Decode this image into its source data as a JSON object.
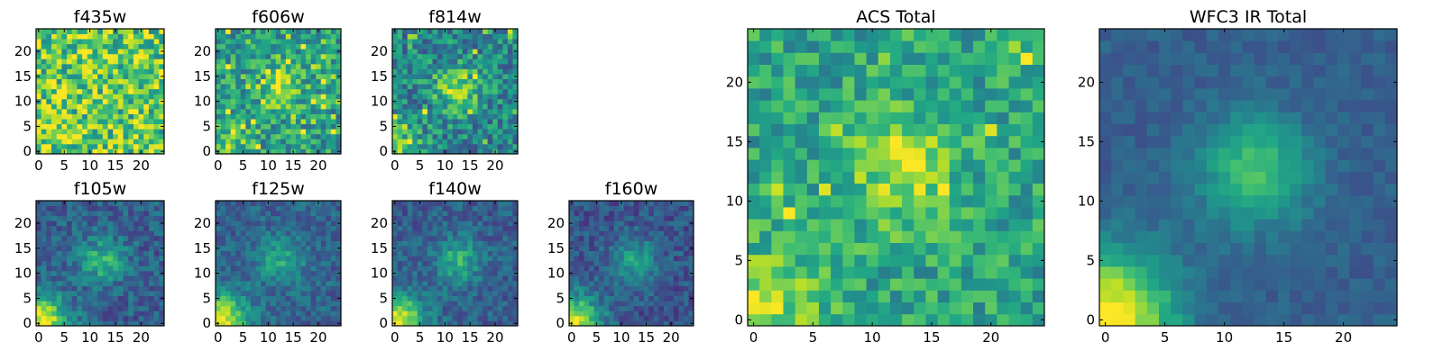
{
  "chart_data": {
    "type": "heatmap",
    "colormap": "viridis",
    "grid_size": 25,
    "xlim": [
      0,
      25
    ],
    "ylim": [
      0,
      25
    ],
    "panels": [
      {
        "id": "f435w",
        "title": "f435w",
        "xticks": [
          0,
          5,
          10,
          15,
          20
        ],
        "yticks": [
          0,
          5,
          10,
          15,
          20
        ],
        "pattern": {
          "seed": 11,
          "base": 0.72,
          "noise": 0.55,
          "blob": 0.0,
          "corner": 0.05,
          "bright_cells": 0.16
        }
      },
      {
        "id": "f606w",
        "title": "f606w",
        "xticks": [
          0,
          5,
          10,
          15,
          20
        ],
        "yticks": [
          0,
          5,
          10,
          15,
          20
        ],
        "pattern": {
          "seed": 23,
          "base": 0.55,
          "noise": 0.45,
          "blob": 0.25,
          "corner": 0.25,
          "bright_cells": 0.08
        }
      },
      {
        "id": "f814w",
        "title": "f814w",
        "xticks": [
          0,
          5,
          10,
          15,
          20
        ],
        "yticks": [
          0,
          5,
          10,
          15,
          20
        ],
        "pattern": {
          "seed": 37,
          "base": 0.45,
          "noise": 0.45,
          "blob": 0.4,
          "corner": 0.35,
          "bright_cells": 0.04
        }
      },
      {
        "id": "f105w",
        "title": "f105w",
        "xticks": [
          0,
          5,
          10,
          15,
          20
        ],
        "yticks": [
          0,
          5,
          10,
          15,
          20
        ],
        "pattern": {
          "seed": 41,
          "base": 0.3,
          "noise": 0.28,
          "blob": 0.35,
          "corner": 0.7,
          "bright_cells": 0.0
        }
      },
      {
        "id": "f125w",
        "title": "f125w",
        "xticks": [
          0,
          5,
          10,
          15,
          20
        ],
        "yticks": [
          0,
          5,
          10,
          15,
          20
        ],
        "pattern": {
          "seed": 53,
          "base": 0.32,
          "noise": 0.25,
          "blob": 0.28,
          "corner": 0.7,
          "bright_cells": 0.0
        }
      },
      {
        "id": "f140w",
        "title": "f140w",
        "xticks": [
          0,
          5,
          10,
          15,
          20
        ],
        "yticks": [
          0,
          5,
          10,
          15,
          20
        ],
        "pattern": {
          "seed": 67,
          "base": 0.3,
          "noise": 0.25,
          "blob": 0.33,
          "corner": 0.72,
          "bright_cells": 0.0
        }
      },
      {
        "id": "f160w",
        "title": "f160w",
        "xticks": [
          0,
          5,
          10,
          15,
          20
        ],
        "yticks": [
          0,
          5,
          10,
          15,
          20
        ],
        "pattern": {
          "seed": 79,
          "base": 0.26,
          "noise": 0.25,
          "blob": 0.32,
          "corner": 0.72,
          "bright_cells": 0.0
        }
      },
      {
        "id": "acs-total",
        "title": "ACS Total",
        "xticks": [
          0,
          5,
          10,
          15,
          20
        ],
        "yticks": [
          0,
          5,
          10,
          15,
          20
        ],
        "pattern": {
          "seed": 97,
          "base": 0.58,
          "noise": 0.36,
          "blob": 0.3,
          "corner": 0.3,
          "bright_cells": 0.03
        }
      },
      {
        "id": "wfc3-ir-total",
        "title": "WFC3 IR Total",
        "xticks": [
          0,
          5,
          10,
          15,
          20
        ],
        "yticks": [
          0,
          5,
          10,
          15,
          20
        ],
        "pattern": {
          "seed": 113,
          "base": 0.3,
          "noise": 0.12,
          "blob": 0.42,
          "corner": 0.75,
          "bright_cells": 0.0
        }
      }
    ]
  }
}
